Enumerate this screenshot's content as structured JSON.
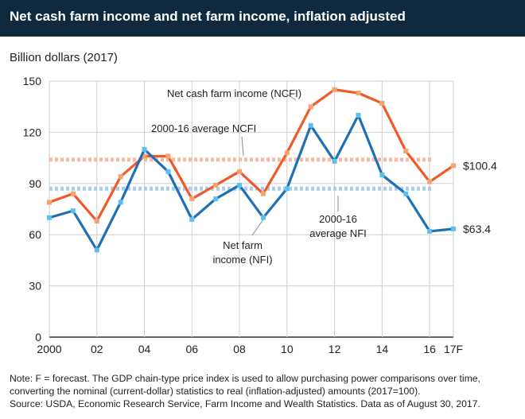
{
  "header": {
    "title": "Net cash farm income and net farm income, inflation adjusted"
  },
  "notes": {
    "line1": "Note: F = forecast. The GDP chain-type price index is used to allow purchasing power comparisons over time,",
    "line2": "converting the nominal (current-dollar) statistics to real (inflation-adjusted) amounts (2017=100).",
    "line3": "Source: USDA, Economic Research Service, Farm Income and Wealth Statistics. Data as of August 30, 2017."
  },
  "colors": {
    "ncfi": "#ef5a28",
    "ncfi_marker": "#f7a26e",
    "nfi": "#1f6fb5",
    "nfi_marker": "#5bc0f0",
    "ncfi_avg": "#f6b8a3",
    "nfi_avg": "#a9cdee",
    "grid": "#cfcfcf"
  },
  "chart_data": {
    "type": "line",
    "ylabel": "Billion dollars (2017)",
    "ylim": [
      0,
      150
    ],
    "yticks": [
      "0",
      "30",
      "60",
      "90",
      "120",
      "150"
    ],
    "x": [
      2000,
      2001,
      2002,
      2003,
      2004,
      2005,
      2006,
      2007,
      2008,
      2009,
      2010,
      2011,
      2012,
      2013,
      2014,
      2015,
      2016,
      2017
    ],
    "xlim": [
      2000,
      2017
    ],
    "xticks": [
      {
        "x": 2000,
        "label": "2000"
      },
      {
        "x": 2002,
        "label": "02"
      },
      {
        "x": 2004,
        "label": "04"
      },
      {
        "x": 2006,
        "label": "06"
      },
      {
        "x": 2008,
        "label": "08"
      },
      {
        "x": 2010,
        "label": "10"
      },
      {
        "x": 2012,
        "label": "12"
      },
      {
        "x": 2014,
        "label": "14"
      },
      {
        "x": 2016,
        "label": "16"
      },
      {
        "x": 2017,
        "label": "17F"
      }
    ],
    "grid": true,
    "series": [
      {
        "name": "Net cash farm income (NCFI)",
        "color_key": "ncfi",
        "values": [
          79,
          84,
          68,
          94,
          106,
          106,
          81,
          89,
          97,
          84,
          108,
          135,
          145,
          143,
          137,
          109,
          91,
          100.4
        ],
        "end_label": "$100.4"
      },
      {
        "name": "Net farm income (NFI)",
        "color_key": "nfi",
        "values": [
          70,
          74,
          51,
          79,
          110,
          97,
          69,
          81,
          89,
          70,
          87,
          124,
          103,
          130,
          95,
          84,
          62,
          63.4
        ],
        "end_label": "$63.4"
      }
    ],
    "reference_lines": [
      {
        "name": "2000-16 average NCFI",
        "value": 104,
        "color_key": "ncfi_avg"
      },
      {
        "name": "2000-16 average NFI",
        "value": 87,
        "color_key": "nfi_avg"
      }
    ],
    "annotations": {
      "ncfi_label": "Net cash farm income (NCFI)",
      "ncfi_avg_label": "2000-16 average NCFI",
      "nfi_label_line1": "Net farm",
      "nfi_label_line2": "income (NFI)",
      "nfi_avg_label_line1": "2000-16",
      "nfi_avg_label_line2": "average NFI"
    }
  }
}
